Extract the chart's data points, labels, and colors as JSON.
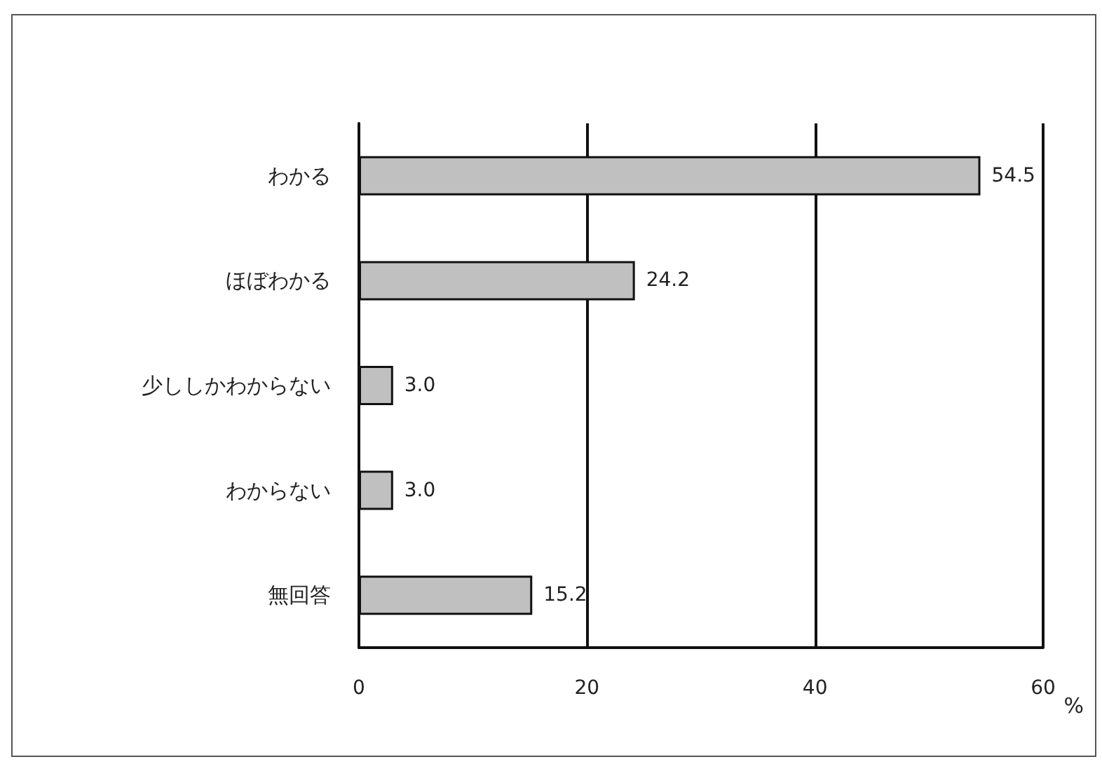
{
  "chart_data": {
    "type": "bar",
    "orientation": "horizontal",
    "categories": [
      "わかる",
      "ほぼわかる",
      "少ししかわからない",
      "わからない",
      "無回答"
    ],
    "values": [
      54.5,
      24.2,
      3.0,
      3.0,
      15.2
    ],
    "value_labels": [
      "54.5",
      "24.2",
      "3.0",
      "3.0",
      "15.2"
    ],
    "color": "#c0c0c0",
    "xlim": [
      0,
      60
    ],
    "xticks": [
      0,
      20,
      40,
      60
    ],
    "xlabel": "%",
    "grid": "x"
  }
}
